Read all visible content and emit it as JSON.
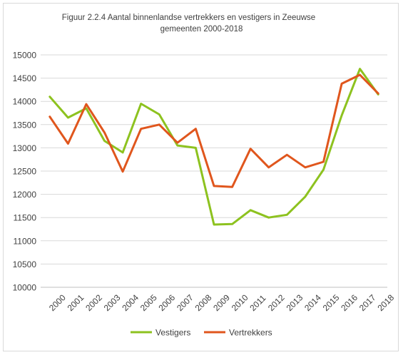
{
  "chart_data": {
    "type": "line",
    "title_line1": "Figuur 2.2.4 Aantal binnenlandse vertrekkers en vestigers in Zeeuwse",
    "title_line2": "gemeenten 2000-2018",
    "categories": [
      "2000",
      "2001",
      "2002",
      "2003",
      "2004",
      "2005",
      "2006",
      "2007",
      "2008",
      "2009",
      "2010",
      "2011",
      "2012",
      "2013",
      "2014",
      "2015",
      "2016",
      "2017",
      "2018"
    ],
    "yticks": [
      "10000",
      "10500",
      "11000",
      "11500",
      "12000",
      "12500",
      "13000",
      "13500",
      "14000",
      "14500",
      "15000"
    ],
    "ylim": [
      10000,
      15000
    ],
    "grid": true,
    "legend_position": "bottom",
    "series": [
      {
        "name": "Vestigers",
        "color": "#8dc21f",
        "values": [
          14100,
          13650,
          13850,
          13150,
          12900,
          13950,
          13720,
          13050,
          13000,
          11350,
          11360,
          11660,
          11500,
          11560,
          11950,
          12530,
          13700,
          14700,
          14150
        ]
      },
      {
        "name": "Vertrekkers",
        "color": "#e0561d",
        "values": [
          13670,
          13090,
          13940,
          13330,
          12490,
          13410,
          13500,
          13110,
          13410,
          12180,
          12160,
          12980,
          12580,
          12850,
          12580,
          12700,
          14380,
          14570,
          14170
        ]
      }
    ]
  }
}
